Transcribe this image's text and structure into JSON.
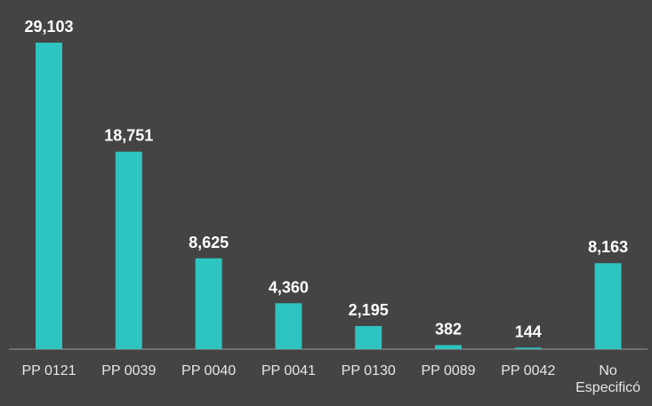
{
  "chart_data": {
    "type": "bar",
    "categories": [
      "PP 0121",
      "PP 0039",
      "PP 0040",
      "PP 0041",
      "PP 0130",
      "PP 0089",
      "PP 0042",
      "No Especificó"
    ],
    "values": [
      29103,
      18751,
      8625,
      4360,
      2195,
      382,
      144,
      8163
    ],
    "value_labels": [
      "29,103",
      "18,751",
      "8,625",
      "4,360",
      "2,195",
      "382",
      "144",
      "8,163"
    ],
    "color": "#2ec4c0"
  }
}
